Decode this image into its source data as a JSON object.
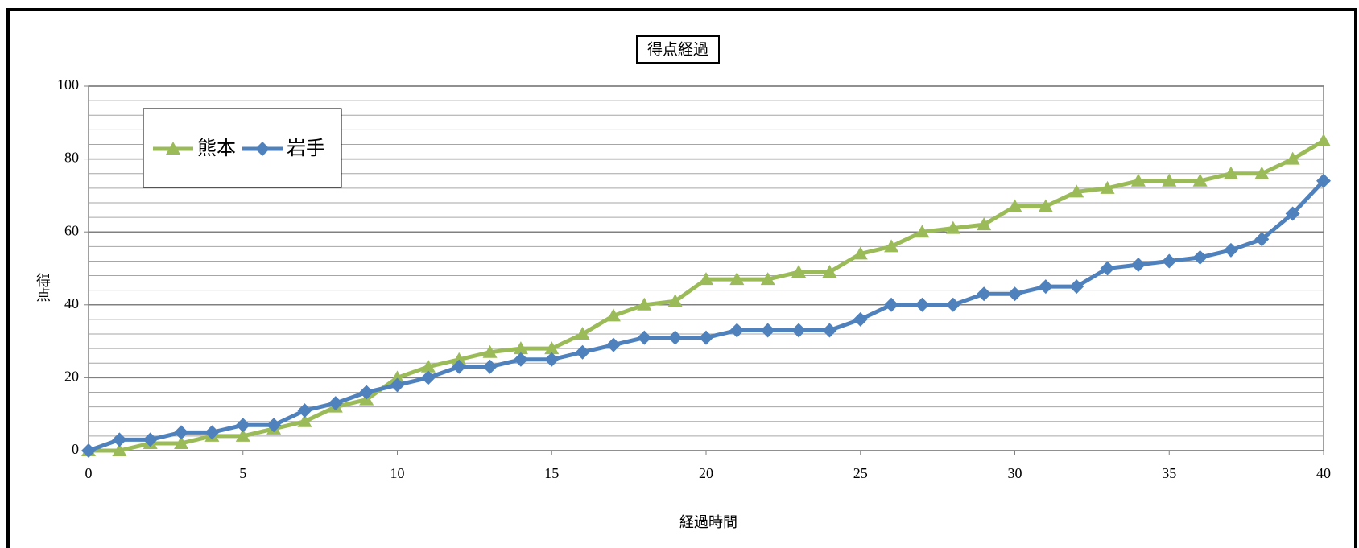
{
  "chart_data": {
    "type": "line",
    "title": "得点経過",
    "x_label": "経過時間",
    "y_label": "得点",
    "x": [
      0,
      1,
      2,
      3,
      4,
      5,
      6,
      7,
      8,
      9,
      10,
      11,
      12,
      13,
      14,
      15,
      16,
      17,
      18,
      19,
      20,
      21,
      22,
      23,
      24,
      25,
      26,
      27,
      28,
      29,
      30,
      31,
      32,
      33,
      34,
      35,
      36,
      37,
      38,
      39,
      40
    ],
    "series": [
      {
        "name": "熊本",
        "color": "#9bbb59",
        "marker": "triangle",
        "values": [
          0,
          0,
          2,
          2,
          4,
          4,
          6,
          8,
          12,
          14,
          20,
          23,
          25,
          27,
          28,
          28,
          32,
          37,
          40,
          41,
          47,
          47,
          47,
          49,
          49,
          54,
          56,
          60,
          61,
          62,
          67,
          67,
          71,
          72,
          74,
          74,
          74,
          76,
          76,
          80,
          85
        ]
      },
      {
        "name": "岩手",
        "color": "#4f81bd",
        "marker": "diamond",
        "values": [
          0,
          3,
          3,
          5,
          5,
          7,
          7,
          11,
          13,
          16,
          18,
          20,
          23,
          23,
          25,
          25,
          27,
          29,
          31,
          31,
          31,
          33,
          33,
          33,
          33,
          36,
          40,
          40,
          40,
          43,
          43,
          45,
          45,
          50,
          51,
          52,
          53,
          55,
          58,
          65,
          74
        ]
      }
    ],
    "xlim": [
      0,
      40
    ],
    "xticks": [
      0,
      5,
      10,
      15,
      20,
      25,
      30,
      35,
      40
    ],
    "ylim": [
      0,
      100
    ],
    "yticks": [
      0,
      20,
      40,
      60,
      80,
      100
    ],
    "minor_yticks": [
      4,
      8,
      12,
      16,
      24,
      28,
      32,
      36,
      44,
      48,
      52,
      56,
      64,
      68,
      72,
      76,
      84,
      88,
      92,
      96
    ],
    "grid": true,
    "legend": "upper left"
  }
}
